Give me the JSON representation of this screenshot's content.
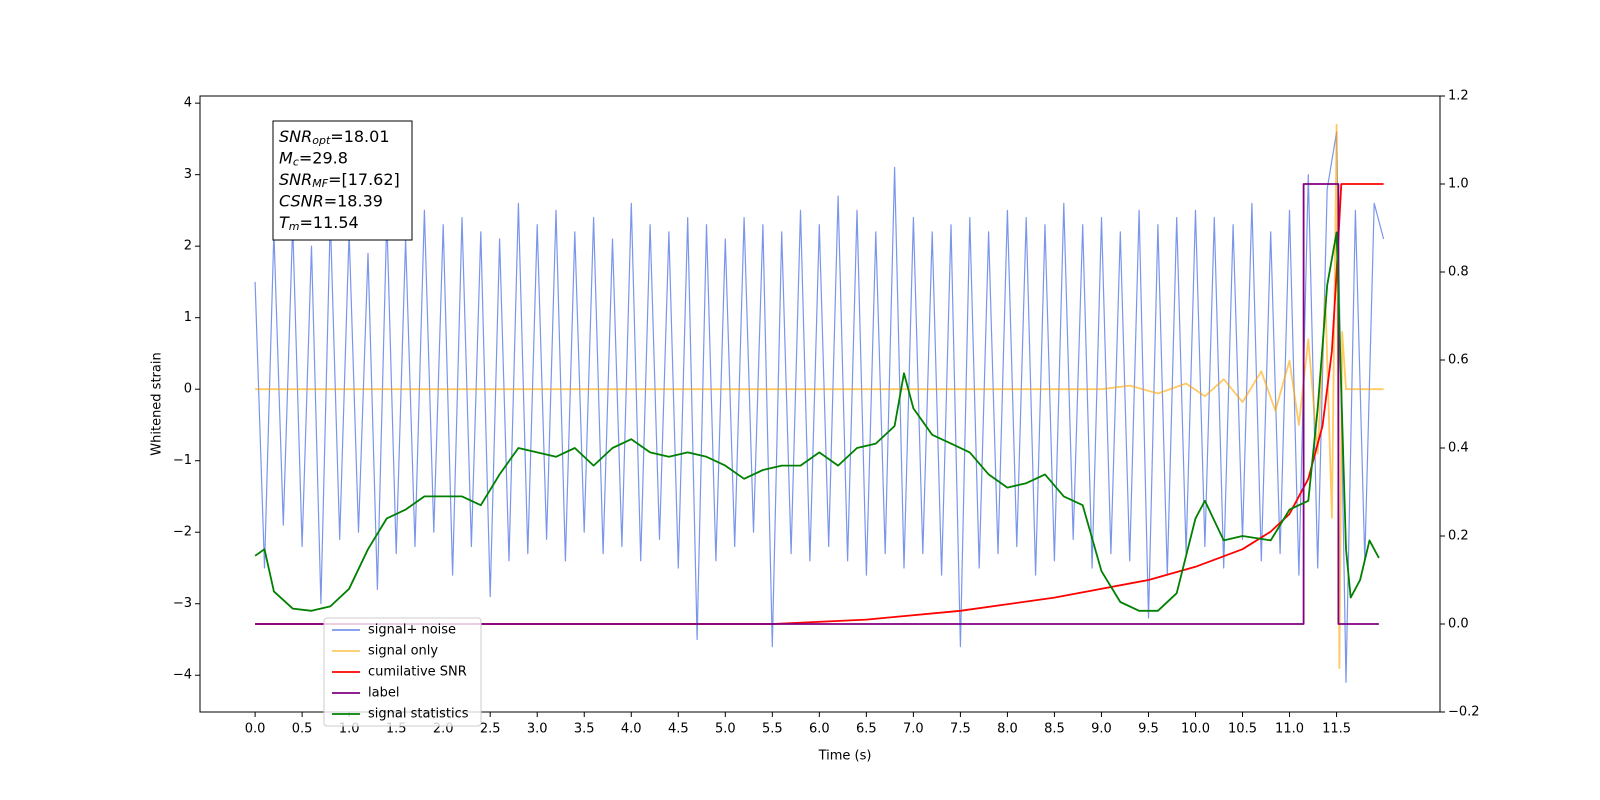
{
  "chart_data": {
    "type": "line",
    "xlabel": "Time (s)",
    "ylabel": "Whitened strain",
    "xlim": [
      -0.586,
      12.6
    ],
    "ylim": [
      -4.514,
      4.1
    ],
    "y2lim": [
      -0.2,
      1.2
    ],
    "xticks": [
      {
        "value": 0,
        "label": "0.0"
      },
      0.5,
      {
        "value": 1,
        "label": "1.0"
      },
      1.5,
      {
        "value": 2,
        "label": "2.0"
      },
      2.5,
      {
        "value": 3,
        "label": "3.0"
      },
      3.5,
      {
        "value": 4,
        "label": "4.0"
      },
      4.5,
      {
        "value": 5,
        "label": "5.0"
      },
      5.5,
      {
        "value": 6,
        "label": "6.0"
      },
      6.5,
      {
        "value": 7,
        "label": "7.0"
      },
      7.5,
      {
        "value": 8,
        "label": "8.0"
      },
      8.5,
      {
        "value": 9,
        "label": "9.0"
      },
      9.5,
      {
        "value": 10,
        "label": "10.0"
      },
      10.5,
      {
        "value": 11,
        "label": "11.0"
      },
      11.5
    ],
    "yticks": [
      {
        "value": -4,
        "label": "−4"
      },
      {
        "value": -3,
        "label": "−3"
      },
      {
        "value": -2,
        "label": "−2"
      },
      {
        "value": -1,
        "label": "−1"
      },
      0,
      1,
      2,
      3,
      4
    ],
    "y2ticks": [
      {
        "value": -0.2,
        "label": "−0.2"
      },
      {
        "value": 0,
        "label": "0.0"
      },
      0.2,
      0.4,
      0.6,
      0.8,
      {
        "value": 1,
        "label": "1.0"
      },
      1.2
    ],
    "annotation": [
      {
        "symbol": "SNR",
        "subscript": "opt",
        "text": "=18.01"
      },
      {
        "symbol": "M",
        "subscript": "c",
        "text": "=29.8"
      },
      {
        "symbol": "SNR",
        "subscript": "MF",
        "text": "=[17.62]"
      },
      {
        "symbol": "CSNR",
        "subscript": "",
        "text": "=18.39"
      },
      {
        "symbol": "T",
        "subscript": "m",
        "text": "=11.54"
      }
    ],
    "series": [
      {
        "name": "signal+ noise",
        "color": "#4169e1",
        "opacity": 0.7,
        "x": [
          0.0,
          0.1,
          0.2,
          0.3,
          0.4,
          0.5,
          0.6,
          0.7,
          0.8,
          0.9,
          1.0,
          1.1,
          1.2,
          1.3,
          1.4,
          1.5,
          1.6,
          1.7,
          1.8,
          1.9,
          2.0,
          2.1,
          2.2,
          2.3,
          2.4,
          2.5,
          2.6,
          2.7,
          2.8,
          2.9,
          3.0,
          3.1,
          3.2,
          3.3,
          3.4,
          3.5,
          3.6,
          3.7,
          3.8,
          3.9,
          4.0,
          4.1,
          4.2,
          4.3,
          4.4,
          4.5,
          4.6,
          4.7,
          4.8,
          4.9,
          5.0,
          5.1,
          5.2,
          5.3,
          5.4,
          5.5,
          5.6,
          5.7,
          5.8,
          5.9,
          6.0,
          6.1,
          6.2,
          6.3,
          6.4,
          6.5,
          6.6,
          6.7,
          6.8,
          6.9,
          7.0,
          7.1,
          7.2,
          7.3,
          7.4,
          7.5,
          7.6,
          7.7,
          7.8,
          7.9,
          8.0,
          8.1,
          8.2,
          8.3,
          8.4,
          8.5,
          8.6,
          8.7,
          8.8,
          8.9,
          9.0,
          9.1,
          9.2,
          9.3,
          9.4,
          9.5,
          9.6,
          9.7,
          9.8,
          9.9,
          10.0,
          10.1,
          10.2,
          10.3,
          10.4,
          10.5,
          10.6,
          10.7,
          10.8,
          10.9,
          11.0,
          11.1,
          11.2,
          11.3,
          11.4,
          11.5,
          11.6,
          11.7,
          11.8,
          11.9,
          12.0
        ],
        "values": [
          1.5,
          -2.5,
          2.2,
          -1.9,
          2.3,
          -2.2,
          2.0,
          -3.0,
          2.4,
          -2.1,
          2.2,
          -2.0,
          1.9,
          -2.8,
          2.4,
          -2.3,
          2.1,
          -2.2,
          2.5,
          -2.0,
          2.3,
          -2.6,
          2.4,
          -2.2,
          2.2,
          -2.9,
          2.1,
          -2.4,
          2.6,
          -2.3,
          2.3,
          -2.1,
          2.5,
          -2.4,
          2.2,
          -2.0,
          2.4,
          -2.3,
          2.1,
          -2.2,
          2.6,
          -2.4,
          2.3,
          -2.1,
          2.2,
          -2.5,
          2.4,
          -3.5,
          2.3,
          -2.4,
          2.1,
          -2.2,
          2.4,
          -2.0,
          2.3,
          -3.6,
          2.2,
          -2.3,
          2.5,
          -2.4,
          2.3,
          -2.2,
          2.7,
          -2.4,
          2.5,
          -2.6,
          2.2,
          -2.3,
          3.1,
          -2.5,
          2.4,
          -2.3,
          2.2,
          -2.6,
          2.3,
          -3.6,
          2.4,
          -2.5,
          2.2,
          -2.3,
          2.5,
          -2.2,
          2.4,
          -2.6,
          2.3,
          -2.4,
          2.6,
          -2.1,
          2.3,
          -2.5,
          2.4,
          -2.3,
          2.2,
          -2.4,
          2.5,
          -3.2,
          2.3,
          -2.6,
          2.4,
          -2.3,
          2.5,
          -2.2,
          2.4,
          -2.5,
          2.3,
          -2.1,
          2.6,
          -2.4,
          2.2,
          -2.3,
          2.5,
          -2.6,
          3.0,
          -2.5,
          2.8,
          3.6,
          -4.1,
          2.5,
          -2.4,
          2.6,
          2.1
        ]
      },
      {
        "name": "signal only",
        "color": "#ffa500",
        "opacity": 0.6,
        "x": [
          0,
          9.0,
          9.3,
          9.6,
          9.9,
          10.1,
          10.3,
          10.5,
          10.7,
          10.85,
          11.0,
          11.1,
          11.2,
          11.3,
          11.38,
          11.45,
          11.5,
          11.53,
          11.56,
          11.6,
          12.0
        ],
        "values": [
          0,
          0,
          0.05,
          -0.06,
          0.08,
          -0.1,
          0.14,
          -0.18,
          0.25,
          -0.3,
          0.4,
          -0.5,
          0.7,
          -0.9,
          1.3,
          -1.8,
          3.7,
          -3.9,
          0.8,
          0,
          0
        ]
      },
      {
        "name": "cumilative SNR",
        "color": "#ff0000",
        "opacity": 1,
        "axis": "y2",
        "x": [
          0,
          5.5,
          6.5,
          7.5,
          8.5,
          9.5,
          10.0,
          10.5,
          10.8,
          11.0,
          11.2,
          11.35,
          11.45,
          11.5,
          11.55,
          12.0
        ],
        "values": [
          0,
          0,
          0.01,
          0.03,
          0.06,
          0.1,
          0.13,
          0.17,
          0.21,
          0.25,
          0.33,
          0.45,
          0.62,
          0.8,
          1.0,
          1.0
        ]
      },
      {
        "name": "label",
        "color": "#800080",
        "opacity": 1,
        "axis": "y2",
        "x": [
          0,
          11.15,
          11.15,
          11.52,
          11.52,
          11.95
        ],
        "values": [
          0,
          0,
          1,
          1,
          0,
          0
        ]
      },
      {
        "name": "signal statistics",
        "color": "#008000",
        "opacity": 1,
        "axis": "y2",
        "x": [
          0,
          0.1,
          0.2,
          0.4,
          0.6,
          0.8,
          1.0,
          1.2,
          1.4,
          1.6,
          1.8,
          2.0,
          2.2,
          2.4,
          2.6,
          2.8,
          3.0,
          3.2,
          3.4,
          3.6,
          3.8,
          4.0,
          4.2,
          4.4,
          4.6,
          4.8,
          5.0,
          5.2,
          5.4,
          5.6,
          5.8,
          6.0,
          6.2,
          6.4,
          6.6,
          6.8,
          6.9,
          7.0,
          7.2,
          7.4,
          7.6,
          7.8,
          8.0,
          8.2,
          8.4,
          8.6,
          8.8,
          9.0,
          9.2,
          9.4,
          9.6,
          9.8,
          10.0,
          10.1,
          10.3,
          10.5,
          10.8,
          11.0,
          11.2,
          11.3,
          11.4,
          11.5,
          11.6,
          11.65,
          11.75,
          11.85,
          11.95
        ],
        "values": [
          0.155,
          0.17,
          0.074,
          0.035,
          0.03,
          0.04,
          0.08,
          0.17,
          0.24,
          0.26,
          0.29,
          0.29,
          0.29,
          0.27,
          0.34,
          0.4,
          0.39,
          0.38,
          0.4,
          0.36,
          0.4,
          0.42,
          0.39,
          0.38,
          0.39,
          0.38,
          0.36,
          0.33,
          0.35,
          0.36,
          0.36,
          0.39,
          0.36,
          0.4,
          0.41,
          0.45,
          0.57,
          0.49,
          0.43,
          0.41,
          0.39,
          0.34,
          0.31,
          0.32,
          0.34,
          0.29,
          0.27,
          0.12,
          0.05,
          0.03,
          0.03,
          0.07,
          0.24,
          0.28,
          0.19,
          0.2,
          0.19,
          0.26,
          0.28,
          0.49,
          0.77,
          0.89,
          0.17,
          0.06,
          0.1,
          0.19,
          0.15
        ]
      }
    ]
  }
}
